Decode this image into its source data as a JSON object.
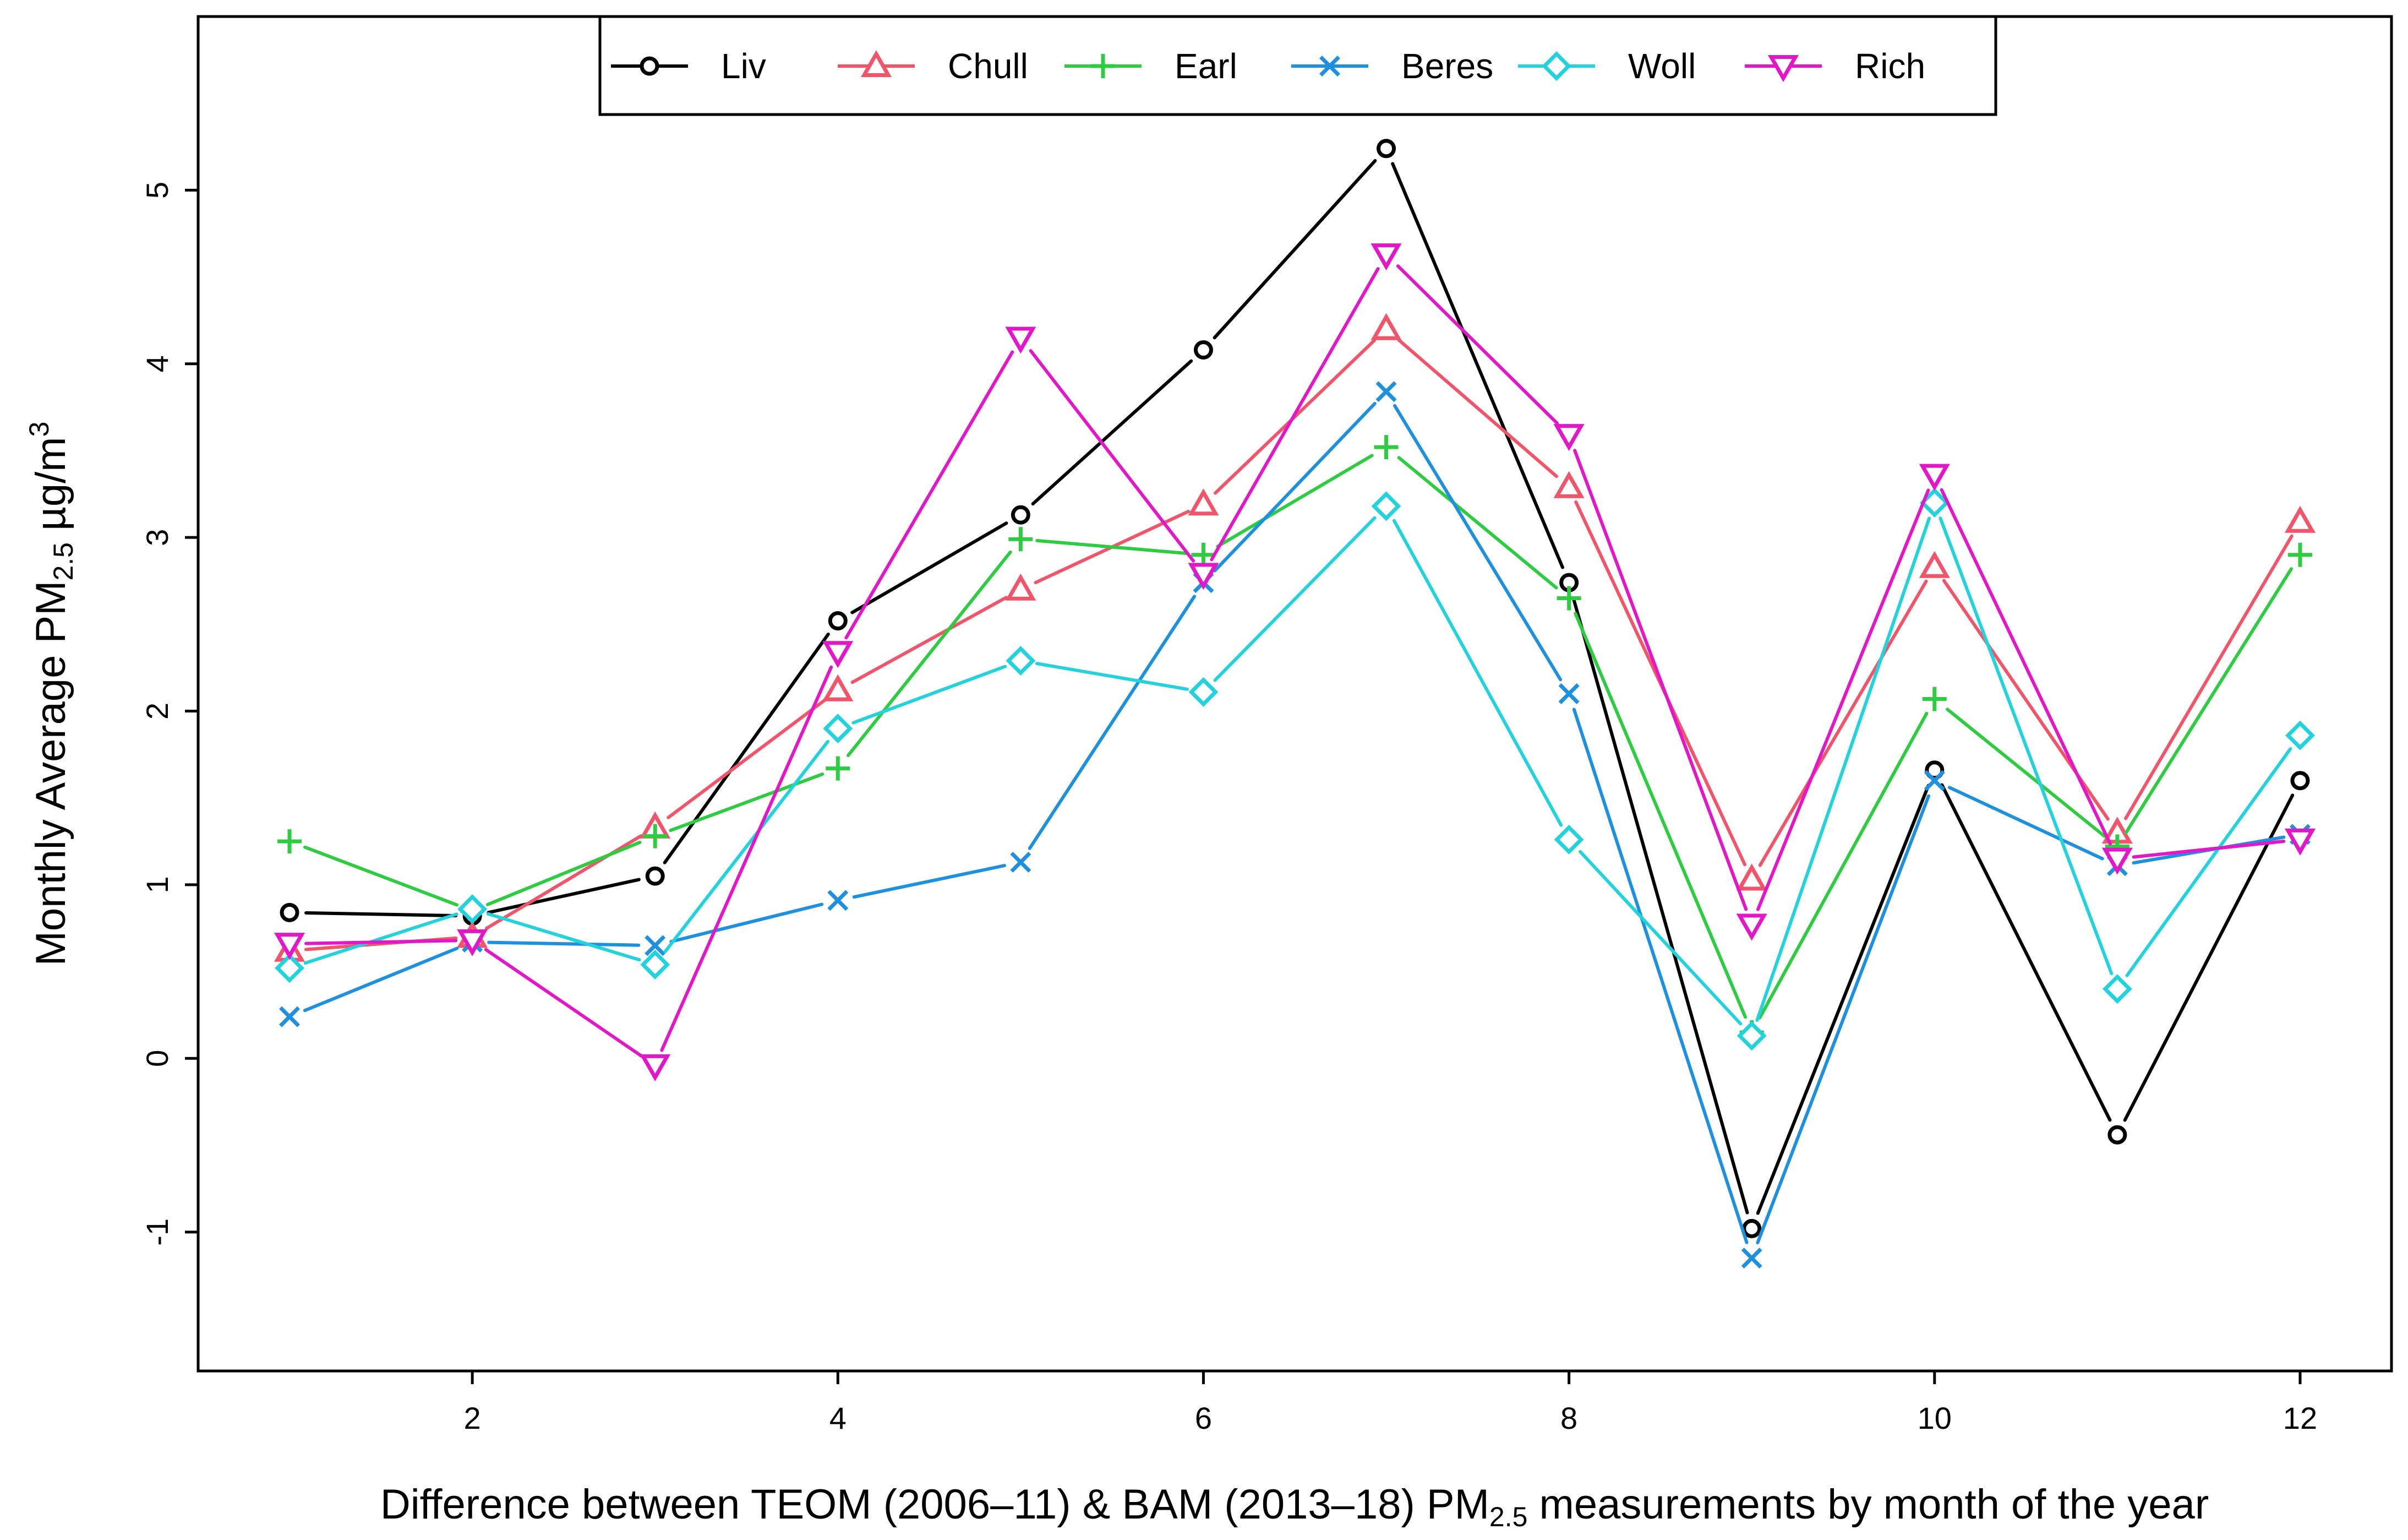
{
  "chart_data": {
    "type": "line",
    "title": "",
    "xlabel": {
      "prefix": "Difference between TEOM (2006–11) & BAM (2013–18) PM",
      "subscript": "2.5",
      "suffix": " measurements by month of the year"
    },
    "ylabel": {
      "prefix": "Monthly Average PM",
      "subscript": "2.5",
      "unit": " µg/m",
      "superscript": "3"
    },
    "x": [
      1,
      2,
      3,
      4,
      5,
      6,
      7,
      8,
      9,
      10,
      11,
      12
    ],
    "xlim": [
      0.5,
      12.5
    ],
    "ylim": [
      -1.8,
      6.0
    ],
    "xticks": [
      2,
      4,
      6,
      8,
      10,
      12
    ],
    "yticks": [
      -1,
      0,
      1,
      2,
      3,
      4,
      5
    ],
    "xtick_labels": [
      "2",
      "4",
      "6",
      "8",
      "10",
      "12"
    ],
    "ytick_labels": [
      "-1",
      "0",
      "1",
      "2",
      "3",
      "4",
      "5"
    ],
    "grid": false,
    "legend_position": "top-center",
    "series": [
      {
        "name": "Liv",
        "color": "#000000",
        "marker": "circle",
        "values": [
          0.84,
          0.82,
          1.05,
          2.52,
          3.13,
          4.08,
          5.24,
          2.74,
          -0.98,
          1.66,
          -0.44,
          1.6
        ]
      },
      {
        "name": "Chull",
        "color": "#F2546A",
        "marker": "triangle-up",
        "values": [
          0.62,
          0.7,
          1.33,
          2.12,
          2.7,
          3.19,
          4.2,
          3.29,
          1.03,
          2.83,
          1.3,
          3.09
        ]
      },
      {
        "name": "Earl",
        "color": "#2ECC40",
        "marker": "plus",
        "values": [
          1.25,
          0.85,
          1.28,
          1.67,
          2.99,
          2.9,
          3.52,
          2.65,
          0.15,
          2.07,
          1.22,
          2.9
        ]
      },
      {
        "name": "Beres",
        "color": "#1E90E0",
        "marker": "x",
        "values": [
          0.24,
          0.67,
          0.65,
          0.91,
          1.13,
          2.74,
          3.84,
          2.1,
          -1.15,
          1.6,
          1.11,
          1.29
        ]
      },
      {
        "name": "Woll",
        "color": "#22D3DD",
        "marker": "diamond",
        "values": [
          0.52,
          0.86,
          0.54,
          1.9,
          2.29,
          2.11,
          3.18,
          1.26,
          0.13,
          3.2,
          0.4,
          1.86
        ]
      },
      {
        "name": "Rich",
        "color": "#E317C8",
        "marker": "triangle-down",
        "values": [
          0.66,
          0.68,
          -0.04,
          2.34,
          4.15,
          2.79,
          4.63,
          3.59,
          0.77,
          3.36,
          1.15,
          1.26
        ]
      }
    ]
  }
}
